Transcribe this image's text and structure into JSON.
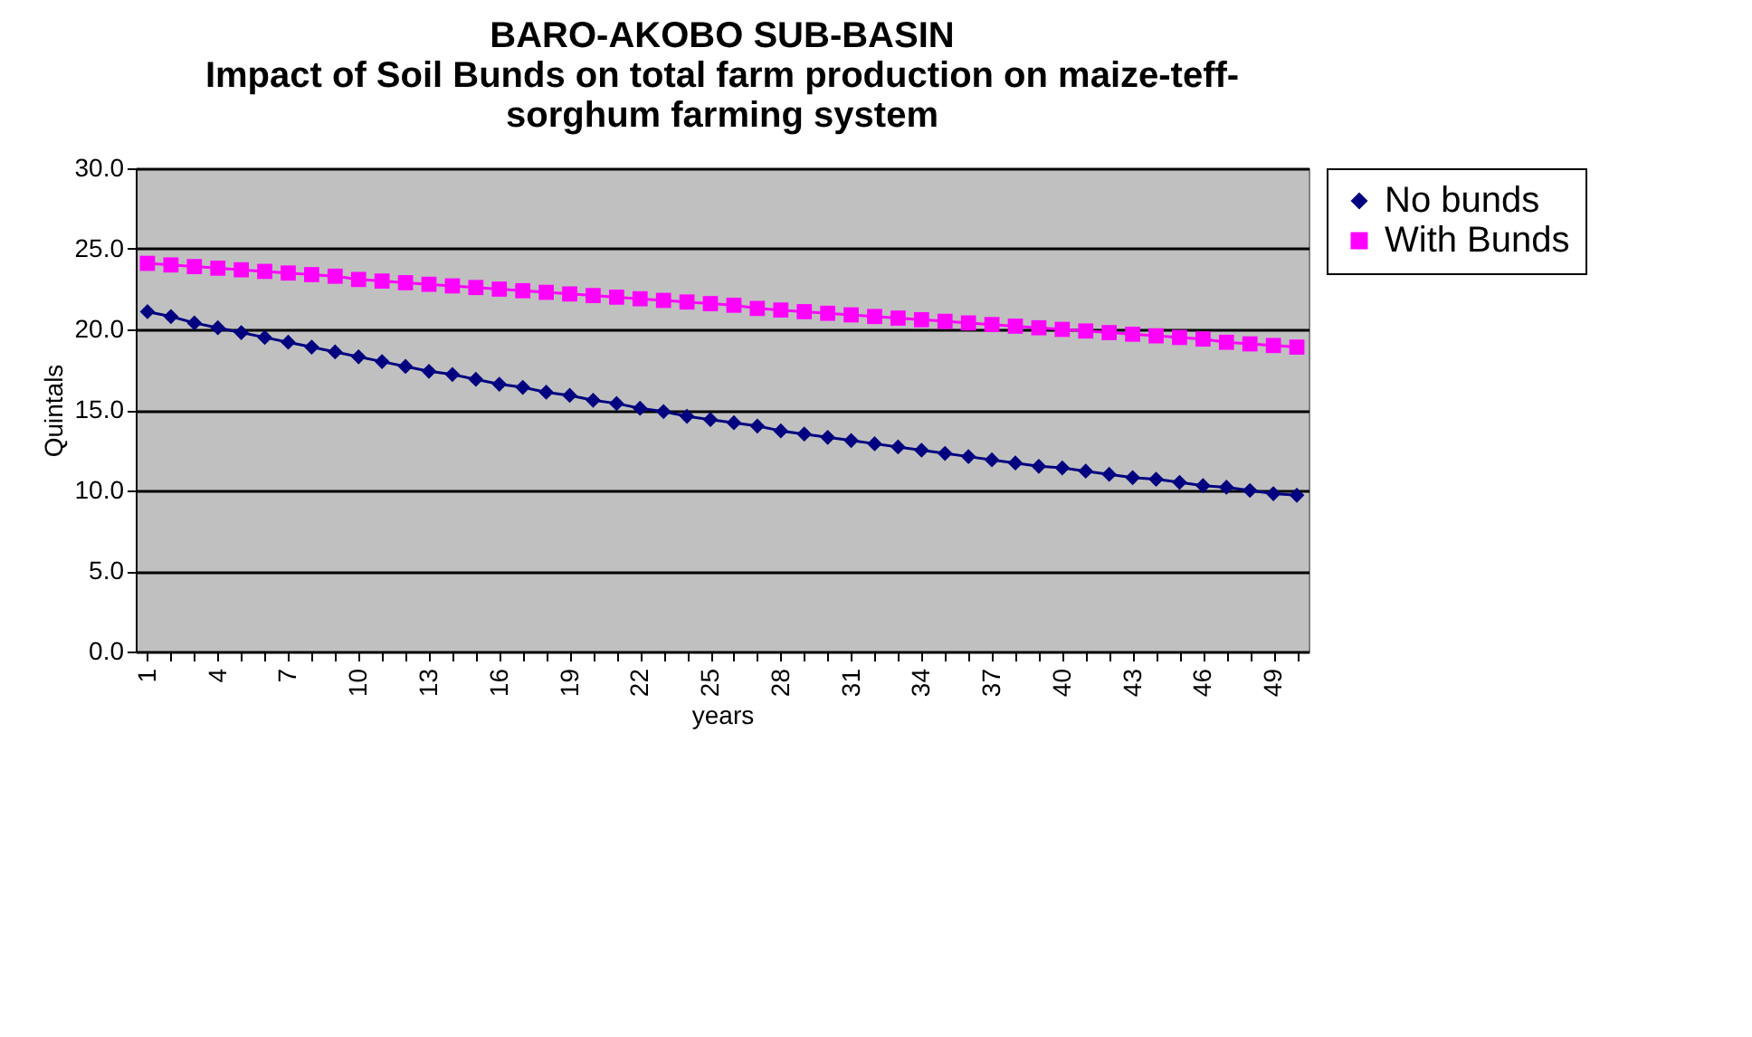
{
  "chart_data": {
    "type": "line",
    "title": "BARO-AKOBO SUB-BASIN\nImpact of Soil Bunds on total farm production on maize-teff-\nsorghum farming system",
    "xlabel": "years",
    "ylabel": "Quintals",
    "categories": [
      "1",
      null,
      null,
      "4",
      null,
      null,
      "7",
      null,
      null,
      "10",
      null,
      null,
      "13",
      null,
      null,
      "16",
      null,
      null,
      "19",
      null,
      null,
      "22",
      null,
      null,
      "25",
      null,
      null,
      "28",
      null,
      null,
      "31",
      null,
      null,
      "34",
      null,
      null,
      "37",
      null,
      null,
      "40",
      null,
      null,
      "43",
      null,
      null,
      "46",
      null,
      null,
      "49",
      null
    ],
    "series": [
      {
        "name": "No bunds",
        "color": "#000080",
        "marker": "diamond",
        "values": [
          21.1,
          20.8,
          20.4,
          20.1,
          19.8,
          19.5,
          19.2,
          18.9,
          18.6,
          18.3,
          18.0,
          17.7,
          17.4,
          17.2,
          16.9,
          16.6,
          16.4,
          16.1,
          15.9,
          15.6,
          15.4,
          15.1,
          14.9,
          14.6,
          14.4,
          14.2,
          14.0,
          13.7,
          13.5,
          13.3,
          13.1,
          12.9,
          12.7,
          12.5,
          12.3,
          12.1,
          11.9,
          11.7,
          11.5,
          11.4,
          11.2,
          11.0,
          10.8,
          10.7,
          10.5,
          10.3,
          10.2,
          10.0,
          9.8,
          9.7
        ]
      },
      {
        "name": "With Bunds",
        "color": "#ff00ff",
        "marker": "square",
        "values": [
          24.1,
          24.0,
          23.9,
          23.8,
          23.7,
          23.6,
          23.5,
          23.4,
          23.3,
          23.1,
          23.0,
          22.9,
          22.8,
          22.7,
          22.6,
          22.5,
          22.4,
          22.3,
          22.2,
          22.1,
          22.0,
          21.9,
          21.8,
          21.7,
          21.6,
          21.5,
          21.3,
          21.2,
          21.1,
          21.0,
          20.9,
          20.8,
          20.7,
          20.6,
          20.5,
          20.4,
          20.3,
          20.2,
          20.1,
          20.0,
          19.9,
          19.8,
          19.7,
          19.6,
          19.5,
          19.4,
          19.2,
          19.1,
          19.0,
          18.9
        ]
      }
    ],
    "ylim": [
      0,
      30
    ],
    "yticks": [
      {
        "value": 0,
        "label": "0.0"
      },
      {
        "value": 5,
        "label": "5.0"
      },
      {
        "value": 10,
        "label": "10.0"
      },
      {
        "value": 15,
        "label": "15.0"
      },
      {
        "value": 20,
        "label": "20.0"
      },
      {
        "value": 25,
        "label": "25.0"
      },
      {
        "value": 30,
        "label": "30.0"
      }
    ],
    "grid": "y",
    "legend": "right",
    "line_style": "solid"
  }
}
